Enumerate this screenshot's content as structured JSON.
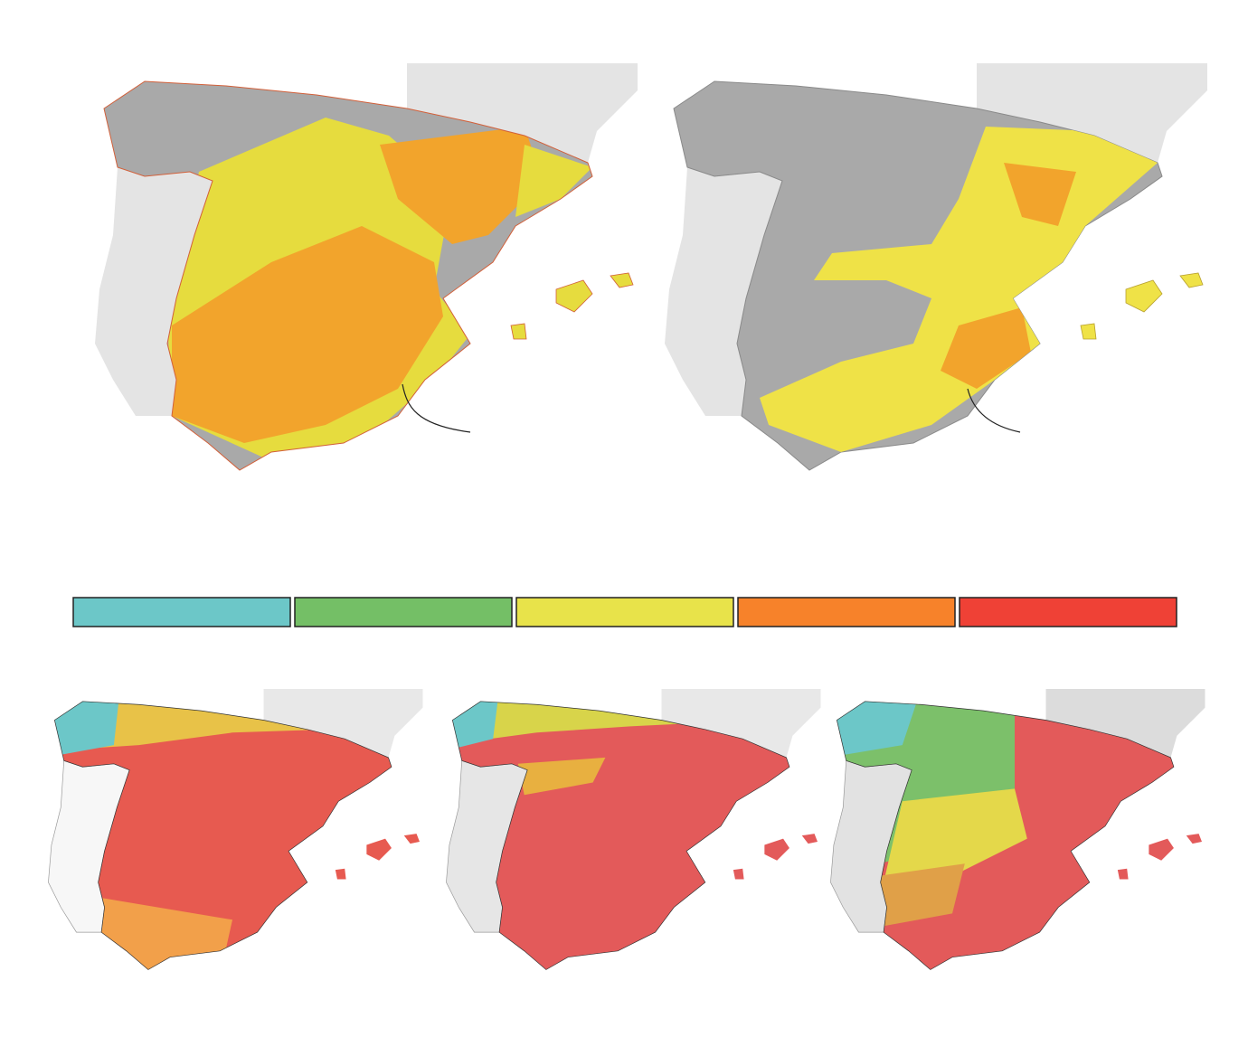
{
  "legend": {
    "colors": [
      "#6cc7c8",
      "#74bf66",
      "#e8e34a",
      "#f7822a",
      "#ef4136"
    ]
  }
}
